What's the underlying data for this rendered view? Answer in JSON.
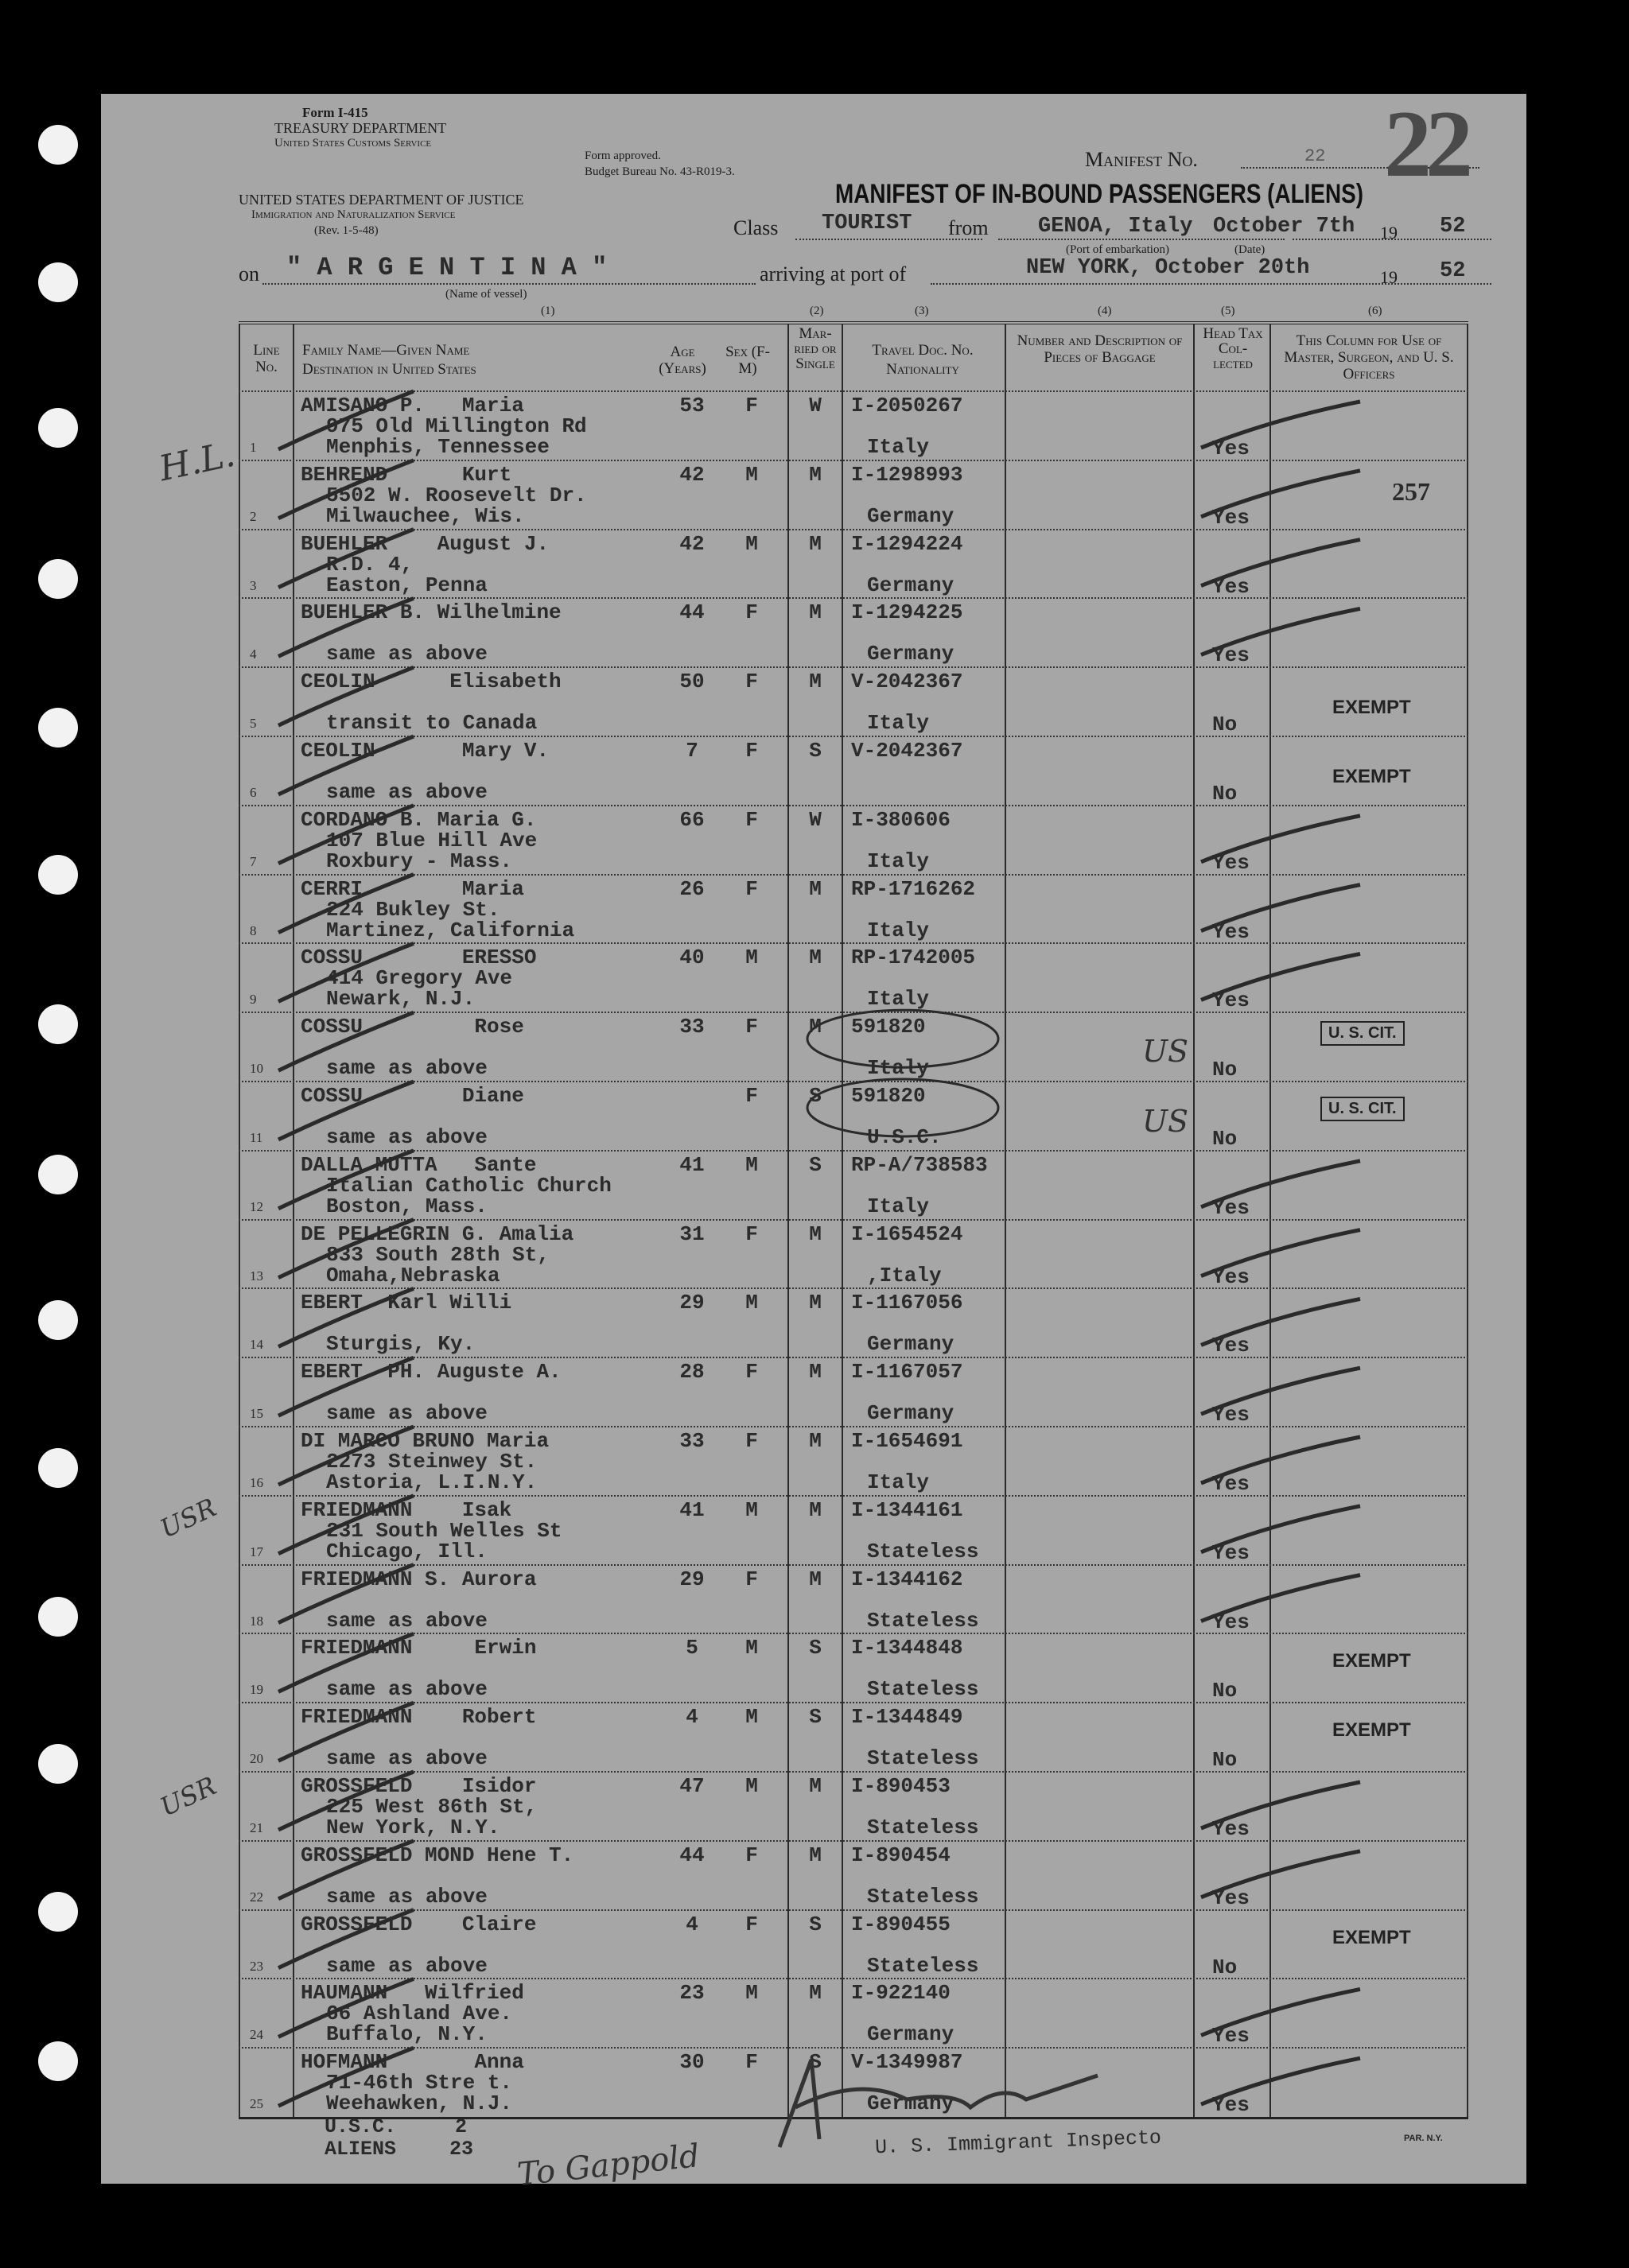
{
  "form_header": {
    "form_no": "Form I-415",
    "dept": "TREASURY DEPARTMENT",
    "service": "United States Customs Service",
    "justice": "UNITED STATES DEPARTMENT OF JUSTICE",
    "ins": "Immigration and Naturalization Service",
    "rev": "(Rev. 1-5-48)",
    "approved": "Form approved.",
    "budget": "Budget Bureau No. 43-R019-3.",
    "manifest_label": "Manifest No.",
    "manifest_no": "22",
    "stamp_no": "22",
    "title": "MANIFEST OF IN-BOUND PASSENGERS (ALIENS)"
  },
  "voyage": {
    "class_label": "Class",
    "class_value": "TOURIST",
    "from_label": "from",
    "port_embarkation": "GENOA, Italy",
    "date_departure": "October 7th",
    "year_prefix": "19",
    "year_departure": "52",
    "port_caption": "(Port of embarkation)",
    "date_caption": "(Date)",
    "on_label": "on",
    "vessel": "\" A R G E N T I N A \"",
    "vessel_caption": "(Name of vessel)",
    "arriving_label": "arriving at port of",
    "port_arrival": "NEW YORK, October 20th",
    "year_arrival": "52"
  },
  "column_numbers": [
    "(1)",
    "(2)",
    "(3)",
    "(4)",
    "(5)",
    "(6)"
  ],
  "columns": {
    "line": "Line No.",
    "name": "Family Name—Given Name",
    "destination": "Destination in United States",
    "age": "Age (Years)",
    "sex": "Sex (F-M)",
    "married": "Mar-ried or Single",
    "doc": "Travel Doc. No.",
    "nationality": "Nationality",
    "baggage": "Number and Description of Pieces of Baggage",
    "head_tax": "Head Tax Col-lected",
    "officers": "This Column for Use of Master, Surgeon, and U. S. Officers"
  },
  "rows": [
    {
      "line": "1",
      "name": "AMISANO P.   Maria",
      "addr": [
        "975 Old Millington Rd",
        "Menphis, Tennessee"
      ],
      "age": "53",
      "sex": "F",
      "ms": "W",
      "doc": "I-2050267",
      "nat": "Italy",
      "tax": "Yes",
      "note": ""
    },
    {
      "line": "2",
      "name": "BEHREND      Kurt",
      "addr": [
        "5502 W. Roosevelt Dr.",
        "Milwauchee, Wis."
      ],
      "age": "42",
      "sex": "M",
      "ms": "M",
      "doc": "I-1298993",
      "nat": "Germany",
      "tax": "Yes",
      "note": "257"
    },
    {
      "line": "3",
      "name": "BUEHLER    August J.",
      "addr": [
        "R.D. 4,",
        "Easton, Penna"
      ],
      "age": "42",
      "sex": "M",
      "ms": "M",
      "doc": "I-1294224",
      "nat": "Germany",
      "tax": "Yes",
      "note": ""
    },
    {
      "line": "4",
      "name": "BUEHLER B. Wilhelmine",
      "addr": [
        "",
        "same as above"
      ],
      "age": "44",
      "sex": "F",
      "ms": "M",
      "doc": "I-1294225",
      "nat": "Germany",
      "tax": "Yes",
      "note": ""
    },
    {
      "line": "5",
      "name": "CEOLIN      Elisabeth",
      "addr": [
        "",
        "transit to Canada"
      ],
      "age": "50",
      "sex": "F",
      "ms": "M",
      "doc": "V-2042367",
      "nat": "Italy",
      "tax": "No",
      "note": "EXEMPT"
    },
    {
      "line": "6",
      "name": "CEOLIN       Mary V.",
      "addr": [
        "",
        "same as above"
      ],
      "age": "7",
      "sex": "F",
      "ms": "S",
      "doc": "V-2042367",
      "nat": "",
      "tax": "No",
      "note": "EXEMPT"
    },
    {
      "line": "7",
      "name": "CORDANO B. Maria G.",
      "addr": [
        "107 Blue Hill Ave",
        "Roxbury - Mass."
      ],
      "age": "66",
      "sex": "F",
      "ms": "W",
      "doc": "I-380606",
      "nat": "Italy",
      "tax": "Yes",
      "note": ""
    },
    {
      "line": "8",
      "name": "CERRI        Maria",
      "addr": [
        "224 Bukley St.",
        "Martinez, California"
      ],
      "age": "26",
      "sex": "F",
      "ms": "M",
      "doc": "RP-1716262",
      "nat": "Italy",
      "tax": "Yes",
      "note": ""
    },
    {
      "line": "9",
      "name": "COSSU        ERESSO",
      "addr": [
        "414 Gregory Ave",
        "Newark, N.J."
      ],
      "age": "40",
      "sex": "M",
      "ms": "M",
      "doc": "RP-1742005",
      "nat": "Italy",
      "tax": "Yes",
      "note": ""
    },
    {
      "line": "10",
      "name": "COSSU         Rose",
      "addr": [
        "",
        "same as above"
      ],
      "age": "33",
      "sex": "F",
      "ms": "M",
      "doc": "591820",
      "nat": "Italy",
      "tax": "No",
      "note": "U. S. CIT."
    },
    {
      "line": "11",
      "name": "COSSU        Diane",
      "addr": [
        "",
        "same as above"
      ],
      "age": "",
      "sex": "F",
      "ms": "S",
      "doc": "591820",
      "nat": "U.S.C.",
      "tax": "No",
      "note": "U. S. CIT."
    },
    {
      "line": "12",
      "name": "DALLA MUTTA   Sante",
      "addr": [
        "Italian Catholic Church",
        "Boston, Mass."
      ],
      "age": "41",
      "sex": "M",
      "ms": "S",
      "doc": "RP-A/738583",
      "nat": "Italy",
      "tax": "Yes",
      "note": ""
    },
    {
      "line": "13",
      "name": "DE PELLEGRIN G. Amalia",
      "addr": [
        "833 South 28th St,",
        "Omaha,Nebraska"
      ],
      "age": "31",
      "sex": "F",
      "ms": "M",
      "doc": "I-1654524",
      "nat": ",Italy",
      "tax": "Yes",
      "note": ""
    },
    {
      "line": "14",
      "name": "EBERT  Karl Willi",
      "addr": [
        "",
        "Sturgis, Ky."
      ],
      "age": "29",
      "sex": "M",
      "ms": "M",
      "doc": "I-1167056",
      "nat": "Germany",
      "tax": "Yes",
      "note": ""
    },
    {
      "line": "15",
      "name": "EBERT  PH. Auguste A.",
      "addr": [
        "",
        "same as above"
      ],
      "age": "28",
      "sex": "F",
      "ms": "M",
      "doc": "I-1167057",
      "nat": "Germany",
      "tax": "Yes",
      "note": ""
    },
    {
      "line": "16",
      "name": "DI MARCO BRUNO Maria",
      "addr": [
        "2273 Steinwey St.",
        "Astoria, L.I.N.Y."
      ],
      "age": "33",
      "sex": "F",
      "ms": "M",
      "doc": "I-1654691",
      "nat": "Italy",
      "tax": "Yes",
      "note": ""
    },
    {
      "line": "17",
      "name": "FRIEDMANN    Isak",
      "addr": [
        "231 South Welles St",
        "Chicago, Ill."
      ],
      "age": "41",
      "sex": "M",
      "ms": "M",
      "doc": "I-1344161",
      "nat": "Stateless",
      "tax": "Yes",
      "note": ""
    },
    {
      "line": "18",
      "name": "FRIEDMANN S. Aurora",
      "addr": [
        "",
        "same as above"
      ],
      "age": "29",
      "sex": "F",
      "ms": "M",
      "doc": "I-1344162",
      "nat": "Stateless",
      "tax": "Yes",
      "note": ""
    },
    {
      "line": "19",
      "name": "FRIEDMANN     Erwin",
      "addr": [
        "",
        "same as above"
      ],
      "age": "5",
      "sex": "M",
      "ms": "S",
      "doc": "I-1344848",
      "nat": "Stateless",
      "tax": "No",
      "note": "EXEMPT"
    },
    {
      "line": "20",
      "name": "FRIEDMANN    Robert",
      "addr": [
        "",
        "same as above"
      ],
      "age": "4",
      "sex": "M",
      "ms": "S",
      "doc": "I-1344849",
      "nat": "Stateless",
      "tax": "No",
      "note": "EXEMPT"
    },
    {
      "line": "21",
      "name": "GROSSFELD    Isidor",
      "addr": [
        "225 West 86th St,",
        "New York, N.Y."
      ],
      "age": "47",
      "sex": "M",
      "ms": "M",
      "doc": "I-890453",
      "nat": "Stateless",
      "tax": "Yes",
      "note": ""
    },
    {
      "line": "22",
      "name": "GROSSFELD MOND Hene T.",
      "addr": [
        "",
        "same as above"
      ],
      "age": "44",
      "sex": "F",
      "ms": "M",
      "doc": "I-890454",
      "nat": "Stateless",
      "tax": "Yes",
      "note": ""
    },
    {
      "line": "23",
      "name": "GROSSFELD    Claire",
      "addr": [
        "",
        "same as above"
      ],
      "age": "4",
      "sex": "F",
      "ms": "S",
      "doc": "I-890455",
      "nat": "Stateless",
      "tax": "No",
      "note": "EXEMPT"
    },
    {
      "line": "24",
      "name": "HAUMANN   Wilfried",
      "addr": [
        "66 Ashland Ave.",
        "Buffalo, N.Y."
      ],
      "age": "23",
      "sex": "M",
      "ms": "M",
      "doc": "I-922140",
      "nat": "Germany",
      "tax": "Yes",
      "note": ""
    },
    {
      "line": "25",
      "name": "HOFMANN       Anna",
      "addr": [
        "71-46th Stre t.",
        "Weehawken, N.J."
      ],
      "age": "30",
      "sex": "F",
      "ms": "S",
      "doc": "V-1349987",
      "nat": "Germany",
      "tax": "Yes",
      "note": ""
    }
  ],
  "footer": {
    "usc_label": "U.S.C.",
    "usc_count": "2",
    "aliens_label": "ALIENS",
    "aliens_count": "23",
    "inspector": "U. S. Immigrant Inspecto",
    "printer": "PAR. N.Y."
  },
  "handwriting": {
    "margin_initials": "H.L.",
    "margin_note_1": "USR",
    "margin_note_2": "USR",
    "referral": "To Gappold",
    "us_mark": "US"
  }
}
